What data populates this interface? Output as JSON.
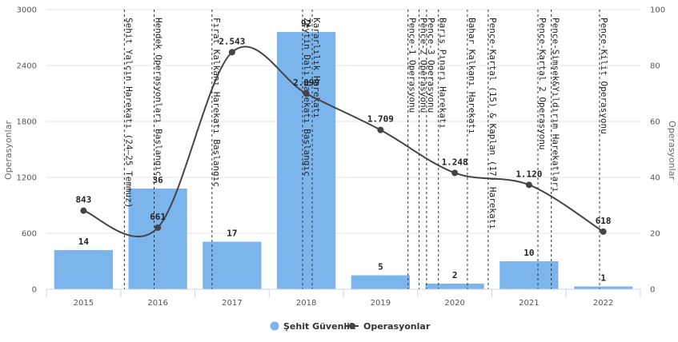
{
  "chart_data": {
    "type": "bar",
    "categories": [
      "2015",
      "2016",
      "2017",
      "2018",
      "2019",
      "2020",
      "2021",
      "2022"
    ],
    "ylabel_left": "Operasyonlar",
    "ylabel_right": "Operasyonlar",
    "ylim_left": [
      0,
      3000
    ],
    "ylim_right": [
      0,
      100
    ],
    "yticks_left": [
      "0",
      "600",
      "1200",
      "1800",
      "2400",
      "3000"
    ],
    "yticks_right": [
      "0",
      "20",
      "40",
      "60",
      "80",
      "100"
    ],
    "series": [
      {
        "name": "Şehit Güvenlik",
        "type": "bar",
        "axis": "right",
        "color": "#7cb5ec",
        "values": [
          14,
          36,
          17,
          92,
          5,
          2,
          10,
          1
        ],
        "labels": [
          "14",
          "36",
          "17",
          "92",
          "5",
          "2",
          "10",
          "1"
        ]
      },
      {
        "name": "Operasyonlar",
        "type": "line",
        "axis": "left",
        "color": "#434348",
        "values": [
          843,
          661,
          2543,
          2099,
          1709,
          1248,
          1120,
          618
        ],
        "labels": [
          "843",
          "661",
          "2.543",
          "2.099",
          "1.709",
          "1.248",
          "1.120",
          "618"
        ]
      }
    ],
    "events": [
      {
        "label": "Şehit Yalçın Harekatı (24–25 Temmuz)",
        "x": 2015.55
      },
      {
        "label": "Hendek Operasyonları Başlangıç",
        "x": 2015.95
      },
      {
        "label": "Fırat Kalkanı Harekatı Başlangıç",
        "x": 2016.73
      },
      {
        "label": "Zeytin Dalı Harekatı Başlangıç",
        "x": 2017.95
      },
      {
        "label": "Kararlılık Harekatı",
        "x": 2018.08
      },
      {
        "label": "Pençe-1 Operasyonu",
        "x": 2019.37
      },
      {
        "label": "Pençe-2 Operasyonu",
        "x": 2019.52
      },
      {
        "label": "Pençe-3 Operasyonu",
        "x": 2019.62
      },
      {
        "label": "Barış Pınarı Harekatı",
        "x": 2019.78
      },
      {
        "label": "Bahar Kalkanı Harekatı",
        "x": 2020.17
      },
      {
        "label": "Pençe-Kartal (15) & Kaplan (17) Harekatı",
        "x": 2020.45
      },
      {
        "label": "Pençe-Kartal 2 Operasyonu",
        "x": 2021.12
      },
      {
        "label": "Pençe-Şimşek&Yıldırım Harekatları",
        "x": 2021.3
      },
      {
        "label": "Pençe-Kilit Operasyonu",
        "x": 2021.95
      }
    ]
  }
}
